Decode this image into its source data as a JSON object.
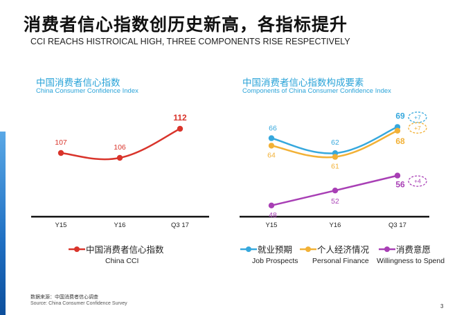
{
  "header": {
    "title_cn": "消费者信心指数创历史新高，各指标提升",
    "title_en": "CCI REACHS HISTROICAL HIGH, THREE COMPONENTS RISE RESPECTIVELY"
  },
  "chart_data": [
    {
      "type": "line",
      "title": "中国消费者信心指数",
      "subtitle": "China  Consumer Confidence Index",
      "categories": [
        "Y15",
        "Y16",
        "Q3 17"
      ],
      "series": [
        {
          "name": "中国消费者信心指数",
          "name_en": "China CCI",
          "color": "#d9342b",
          "values": [
            107,
            106,
            112
          ],
          "labels": [
            "107",
            "106",
            "112"
          ]
        }
      ],
      "ylim": [
        90,
        120
      ],
      "grid": false,
      "legend": "bottom"
    },
    {
      "type": "line",
      "title": "中国消费者信心指数构成要素",
      "subtitle": "Components of China  Consumer Confidence Index",
      "categories": [
        "Y15",
        "Y16",
        "Q3 17"
      ],
      "series": [
        {
          "name": "就业预期",
          "name_en": "Job Prospects",
          "color": "#36a8dd",
          "values": [
            66,
            62,
            69
          ],
          "labels": [
            "66",
            "62",
            "69"
          ],
          "change": "+7"
        },
        {
          "name": "个人经济情况",
          "name_en": "Personal Finance",
          "color": "#f2b136",
          "values": [
            64,
            61,
            68
          ],
          "labels": [
            "64",
            "61",
            "68"
          ],
          "change": "+7"
        },
        {
          "name": "消费意愿",
          "name_en": "Willingness to Spend",
          "color": "#a83fb5",
          "values": [
            48,
            52,
            56
          ],
          "labels": [
            "48",
            "52",
            "56"
          ],
          "change": "+4"
        }
      ],
      "ylim": [
        30,
        80
      ],
      "grid": false,
      "legend": "bottom"
    }
  ],
  "footer": {
    "source_cn": "数据来源：中国消费者信心调查",
    "source_en": "Source: China Consumer Confidence Survey",
    "page_number": "3"
  }
}
